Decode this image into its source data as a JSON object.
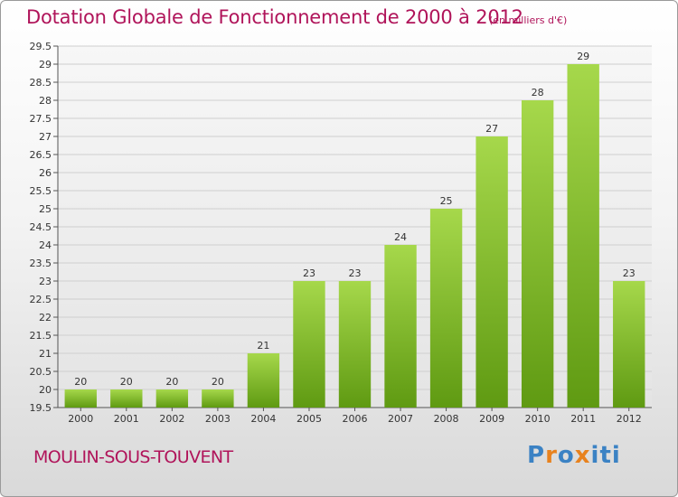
{
  "title": "Dotation Globale de Fonctionnement de 2000 à 2012",
  "unit_note": "(en milliers d'€)",
  "commune": "MOULIN-SOUS-TOUVENT",
  "logo_text": "Proxiti",
  "colors": {
    "title": "#b0145a",
    "bar_light": "#a6d84b",
    "bar_dark": "#5f9a12",
    "logo_letters": [
      "#3b82c4",
      "#e8821e",
      "#3b82c4",
      "#e8821e",
      "#3b82c4",
      "#3b82c4",
      "#3b82c4"
    ]
  },
  "chart_data": {
    "type": "bar",
    "categories": [
      "2000",
      "2001",
      "2002",
      "2003",
      "2004",
      "2005",
      "2006",
      "2007",
      "2008",
      "2009",
      "2010",
      "2011",
      "2012"
    ],
    "values": [
      20,
      20,
      20,
      20,
      21,
      23,
      23,
      24,
      25,
      27,
      28,
      29,
      23
    ],
    "title": "Dotation Globale de Fonctionnement de 2000 à 2012",
    "ylim": [
      19.5,
      29.5
    ],
    "yticks": [
      "19.5",
      "20",
      "20.5",
      "21",
      "21.5",
      "22",
      "22.5",
      "23",
      "23.5",
      "24",
      "24.5",
      "25",
      "25.5",
      "26",
      "26.5",
      "27",
      "27.5",
      "28",
      "28.5",
      "29",
      "29.5"
    ],
    "grid": true,
    "legend": "none"
  }
}
